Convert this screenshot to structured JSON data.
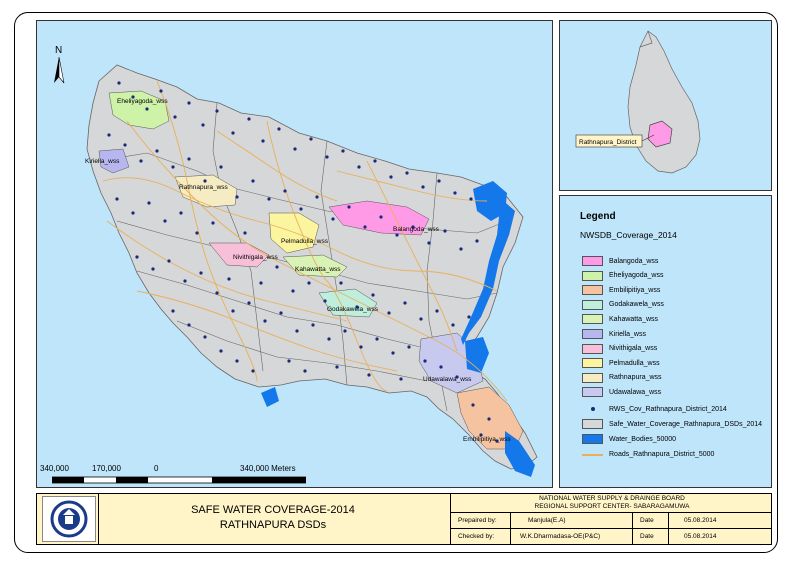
{
  "north_label": "N",
  "map_labels": {
    "eheliyagoda": "Eheliyagoda_wss",
    "kiriella": "Kiriella_wss",
    "rathnapura": "Rathnapura_wss",
    "balangoda": "Balangoda_wss",
    "pelmadulla": "Pelmadulla_wss",
    "niviti": "Nivithigala_wss",
    "kahawatta": "Kahawatta_wss",
    "godakawela": "Godakawela_wss",
    "udawalawa": "Udawalawa_wss",
    "embilipitiya": "Embilipitiya_wss"
  },
  "inset_label": "Rathnapura_District",
  "legend": {
    "title": "Legend",
    "subtitle": "NWSDB_Coverage_2014",
    "items": [
      {
        "label": "Balangoda_wss",
        "color": "#ff9be6"
      },
      {
        "label": "Eheliyagoda_wss",
        "color": "#cdf2a8"
      },
      {
        "label": "Embilipitiya_wss",
        "color": "#f5c3a0"
      },
      {
        "label": "Godakawela_wss",
        "color": "#bfeedd"
      },
      {
        "label": "Kahawatta_wss",
        "color": "#d9f2b5"
      },
      {
        "label": "Kiriella_wss",
        "color": "#b7b6ee"
      },
      {
        "label": "Nivithigala_wss",
        "color": "#f7c0d8"
      },
      {
        "label": "Pelmadulla_wss",
        "color": "#fbf5a0"
      },
      {
        "label": "Rathnapura_wss",
        "color": "#f6ecc4"
      },
      {
        "label": "Udawalawa_wss",
        "color": "#c8c9ef"
      }
    ],
    "points_label": "RWS_Cov_Rathnapura_District_2014",
    "dsd_label": "Safe_Water_Coverage_Rathnapura_DSDs_2014",
    "water_label": "Water_Bodies_50000",
    "roads_label": "Roads_Rathnapura_District_5000"
  },
  "scale": {
    "l1": "340,000",
    "l2": "170,000",
    "l3": "0",
    "l4": "340,000 Meters"
  },
  "title": {
    "line1": "SAFE WATER COVERAGE-2014",
    "line2": "RATHNAPURA DSDs"
  },
  "org": {
    "line1": "NATIONAL WATER SUPPLY & DRAINGE BOARD",
    "line2": "REGIONAL SUPPORT CENTER- SABARAGAMUWA"
  },
  "table": {
    "prepared_label": "Prepaired by:",
    "prepared_value": "Manjula(E.A)",
    "checked_label": "Checked by:",
    "checked_value": "W.K.Dharmadasa-OE(P&C)",
    "date_label": "Date",
    "date1": "05.08.2014",
    "date2": "05.08.2014"
  },
  "colors": {
    "sea": "#bfe5fb",
    "district": "#d6d7d8",
    "water_bodies": "#1477ea",
    "roads": "#e8b05a",
    "points": "#1a2a7a"
  }
}
